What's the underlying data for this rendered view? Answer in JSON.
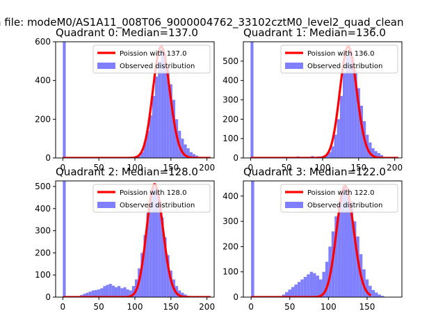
{
  "figure": {
    "suptitle": "n file: modeM0/AS1A11_008T06_9000004762_33102cztM0_level2_quad_clean"
  },
  "chart_data": [
    {
      "type": "bar",
      "title": "Quadrant 0: Median=137.0",
      "xlim": [
        -10,
        210
      ],
      "ylim": [
        0,
        600
      ],
      "xticks": [
        0,
        50,
        100,
        150,
        200
      ],
      "yticks": [
        0,
        200,
        400,
        600
      ],
      "legend": [
        "Poission with 137.0",
        "Observed distribution"
      ],
      "legend_placement": "top-right",
      "colors": {
        "fit": "#ff0000",
        "hist": "#8080ff"
      },
      "poisson_lambda": 137.0,
      "poisson_peak": 575,
      "bin_width": 4,
      "hist": [
        {
          "x": 0,
          "y": 600
        },
        {
          "x": 100,
          "y": 5
        },
        {
          "x": 104,
          "y": 10
        },
        {
          "x": 108,
          "y": 30
        },
        {
          "x": 112,
          "y": 80
        },
        {
          "x": 116,
          "y": 140
        },
        {
          "x": 120,
          "y": 220
        },
        {
          "x": 124,
          "y": 320
        },
        {
          "x": 128,
          "y": 420
        },
        {
          "x": 132,
          "y": 500
        },
        {
          "x": 136,
          "y": 560
        },
        {
          "x": 140,
          "y": 540
        },
        {
          "x": 144,
          "y": 460
        },
        {
          "x": 148,
          "y": 380
        },
        {
          "x": 152,
          "y": 300
        },
        {
          "x": 156,
          "y": 200
        },
        {
          "x": 160,
          "y": 140
        },
        {
          "x": 164,
          "y": 100
        },
        {
          "x": 168,
          "y": 70
        },
        {
          "x": 172,
          "y": 50
        },
        {
          "x": 176,
          "y": 30
        },
        {
          "x": 180,
          "y": 20
        },
        {
          "x": 184,
          "y": 12
        },
        {
          "x": 188,
          "y": 6
        },
        {
          "x": 192,
          "y": 3
        }
      ]
    },
    {
      "type": "bar",
      "title": "Quadrant 1: Median=136.0",
      "xlim": [
        -10,
        210
      ],
      "ylim": [
        0,
        600
      ],
      "xticks": [
        0,
        50,
        100,
        150,
        200
      ],
      "yticks": [
        0,
        100,
        200,
        300,
        400,
        500
      ],
      "legend": [
        "Poission with 136.0",
        "Observed distribution"
      ],
      "legend_placement": "top-right",
      "colors": {
        "fit": "#ff0000",
        "hist": "#8080ff"
      },
      "poisson_lambda": 136.0,
      "poisson_peak": 575,
      "bin_width": 4,
      "hist": [
        {
          "x": 0,
          "y": 600
        },
        {
          "x": 56,
          "y": 5
        },
        {
          "x": 64,
          "y": 8
        },
        {
          "x": 72,
          "y": 5
        },
        {
          "x": 84,
          "y": 10
        },
        {
          "x": 92,
          "y": 8
        },
        {
          "x": 100,
          "y": 12
        },
        {
          "x": 104,
          "y": 18
        },
        {
          "x": 108,
          "y": 30
        },
        {
          "x": 112,
          "y": 60
        },
        {
          "x": 116,
          "y": 120
        },
        {
          "x": 120,
          "y": 200
        },
        {
          "x": 124,
          "y": 320
        },
        {
          "x": 128,
          "y": 440
        },
        {
          "x": 132,
          "y": 530
        },
        {
          "x": 136,
          "y": 560
        },
        {
          "x": 140,
          "y": 520
        },
        {
          "x": 144,
          "y": 450
        },
        {
          "x": 148,
          "y": 360
        },
        {
          "x": 152,
          "y": 270
        },
        {
          "x": 156,
          "y": 190
        },
        {
          "x": 160,
          "y": 120
        },
        {
          "x": 164,
          "y": 80
        },
        {
          "x": 168,
          "y": 50
        },
        {
          "x": 172,
          "y": 35
        },
        {
          "x": 176,
          "y": 25
        },
        {
          "x": 180,
          "y": 15
        }
      ]
    },
    {
      "type": "bar",
      "title": "Quadrant 2: Median=128.0",
      "xlim": [
        -10,
        210
      ],
      "ylim": [
        0,
        525
      ],
      "xticks": [
        0,
        50,
        100,
        150,
        200
      ],
      "yticks": [
        0,
        100,
        200,
        300,
        400,
        500
      ],
      "legend": [
        "Poission with 128.0",
        "Observed distribution"
      ],
      "legend_placement": "top-right",
      "colors": {
        "fit": "#ff0000",
        "hist": "#8080ff"
      },
      "poisson_lambda": 128.0,
      "poisson_peak": 510,
      "bin_width": 4,
      "hist": [
        {
          "x": 0,
          "y": 525
        },
        {
          "x": 24,
          "y": 10
        },
        {
          "x": 28,
          "y": 15
        },
        {
          "x": 32,
          "y": 20
        },
        {
          "x": 36,
          "y": 25
        },
        {
          "x": 40,
          "y": 30
        },
        {
          "x": 44,
          "y": 32
        },
        {
          "x": 48,
          "y": 35
        },
        {
          "x": 52,
          "y": 40
        },
        {
          "x": 56,
          "y": 50
        },
        {
          "x": 60,
          "y": 55
        },
        {
          "x": 64,
          "y": 60
        },
        {
          "x": 68,
          "y": 52
        },
        {
          "x": 72,
          "y": 45
        },
        {
          "x": 76,
          "y": 50
        },
        {
          "x": 80,
          "y": 40
        },
        {
          "x": 84,
          "y": 45
        },
        {
          "x": 88,
          "y": 35
        },
        {
          "x": 92,
          "y": 30
        },
        {
          "x": 96,
          "y": 50
        },
        {
          "x": 100,
          "y": 80
        },
        {
          "x": 104,
          "y": 130
        },
        {
          "x": 108,
          "y": 200
        },
        {
          "x": 112,
          "y": 280
        },
        {
          "x": 116,
          "y": 380
        },
        {
          "x": 120,
          "y": 460
        },
        {
          "x": 124,
          "y": 500
        },
        {
          "x": 128,
          "y": 490
        },
        {
          "x": 132,
          "y": 440
        },
        {
          "x": 136,
          "y": 360
        },
        {
          "x": 140,
          "y": 270
        },
        {
          "x": 144,
          "y": 190
        },
        {
          "x": 148,
          "y": 120
        },
        {
          "x": 152,
          "y": 80
        },
        {
          "x": 156,
          "y": 50
        },
        {
          "x": 160,
          "y": 30
        },
        {
          "x": 164,
          "y": 20
        },
        {
          "x": 168,
          "y": 12
        },
        {
          "x": 172,
          "y": 6
        }
      ]
    },
    {
      "type": "bar",
      "title": "Quadrant 3: Median=122.0",
      "xlim": [
        -10,
        195
      ],
      "ylim": [
        0,
        460
      ],
      "xticks": [
        0,
        50,
        100,
        150
      ],
      "yticks": [
        0,
        100,
        200,
        300,
        400
      ],
      "legend": [
        "Poission with 122.0",
        "Observed distribution"
      ],
      "legend_placement": "top-right",
      "colors": {
        "fit": "#ff0000",
        "hist": "#8080ff"
      },
      "poisson_lambda": 122.0,
      "poisson_peak": 440,
      "bin_width": 4,
      "hist": [
        {
          "x": 0,
          "y": 460
        },
        {
          "x": 40,
          "y": 10
        },
        {
          "x": 44,
          "y": 20
        },
        {
          "x": 48,
          "y": 30
        },
        {
          "x": 52,
          "y": 40
        },
        {
          "x": 56,
          "y": 50
        },
        {
          "x": 60,
          "y": 60
        },
        {
          "x": 64,
          "y": 70
        },
        {
          "x": 68,
          "y": 80
        },
        {
          "x": 72,
          "y": 90
        },
        {
          "x": 76,
          "y": 100
        },
        {
          "x": 80,
          "y": 95
        },
        {
          "x": 84,
          "y": 85
        },
        {
          "x": 88,
          "y": 70
        },
        {
          "x": 92,
          "y": 100
        },
        {
          "x": 96,
          "y": 140
        },
        {
          "x": 100,
          "y": 200
        },
        {
          "x": 104,
          "y": 260
        },
        {
          "x": 108,
          "y": 320
        },
        {
          "x": 112,
          "y": 380
        },
        {
          "x": 116,
          "y": 420
        },
        {
          "x": 120,
          "y": 440
        },
        {
          "x": 124,
          "y": 430
        },
        {
          "x": 128,
          "y": 380
        },
        {
          "x": 132,
          "y": 300
        },
        {
          "x": 136,
          "y": 240
        },
        {
          "x": 140,
          "y": 170
        },
        {
          "x": 144,
          "y": 110
        },
        {
          "x": 148,
          "y": 70
        },
        {
          "x": 152,
          "y": 45
        },
        {
          "x": 156,
          "y": 28
        },
        {
          "x": 160,
          "y": 18
        },
        {
          "x": 164,
          "y": 10
        },
        {
          "x": 168,
          "y": 5
        }
      ]
    }
  ]
}
